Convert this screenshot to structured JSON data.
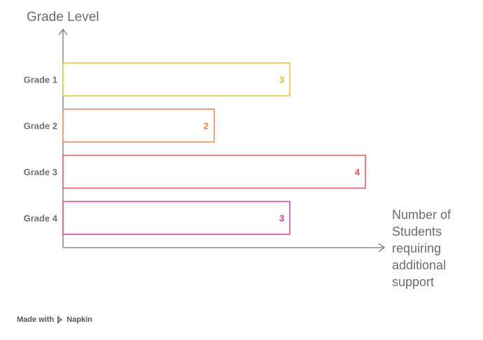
{
  "chart_data": {
    "type": "bar",
    "orientation": "horizontal",
    "ylabel": "Grade Level",
    "xlabel_lines": [
      "Number of",
      "Students",
      "requiring",
      "additional",
      "support"
    ],
    "categories": [
      "Grade 1",
      "Grade 2",
      "Grade 3",
      "Grade 4"
    ],
    "values": [
      3,
      2,
      4,
      3
    ],
    "value_labels": [
      "3",
      "2",
      "4",
      "3"
    ],
    "bar_colors": [
      "#e8c547",
      "#e98a5a",
      "#e8606a",
      "#d94fa0"
    ],
    "label_colors": [
      "#e2b832",
      "#e6853f",
      "#e4505c",
      "#d8409a"
    ],
    "xlim": [
      0,
      4
    ],
    "grid": false,
    "legend": "none"
  },
  "footer": {
    "made_with": "Made with",
    "brand": "Napkin"
  }
}
